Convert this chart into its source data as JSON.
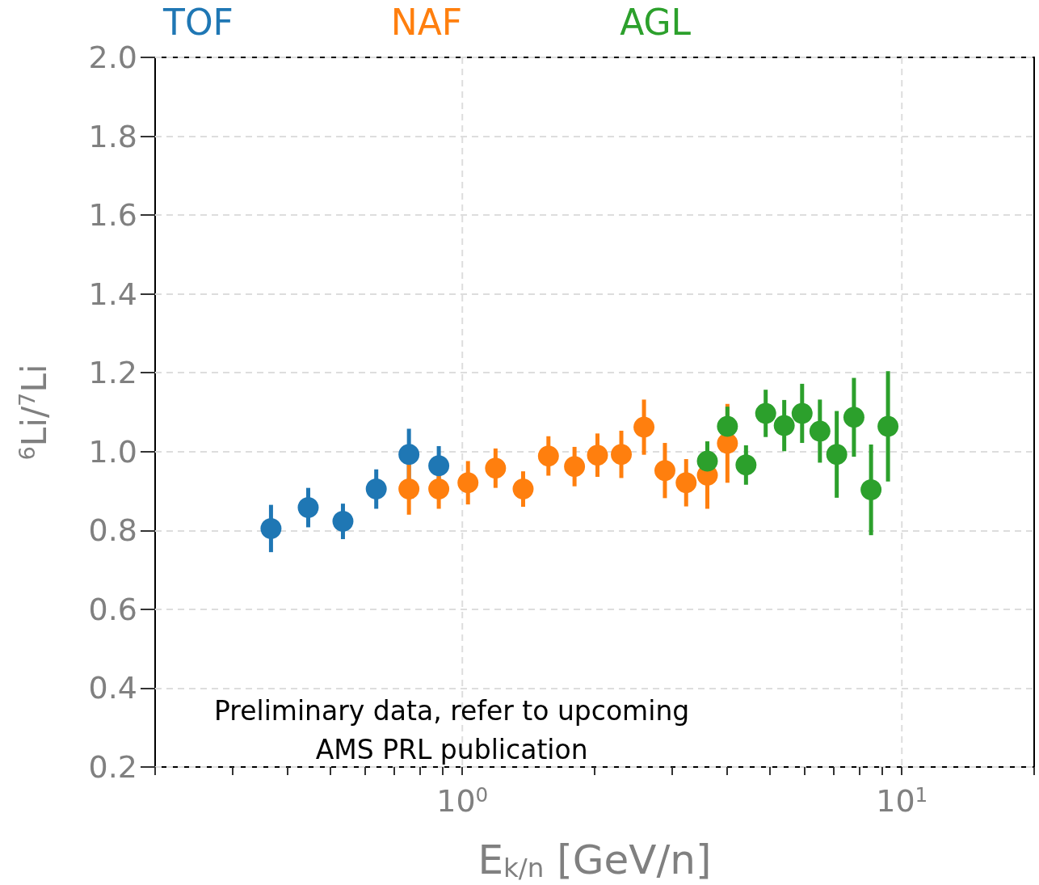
{
  "chart_data": {
    "type": "scatter",
    "xlabel": "E$_{k/n}$ [GeV/n]",
    "ylabel": "$^{6}$Li/$^{7}$Li",
    "log": "x",
    "xlim": [
      0.2,
      20
    ],
    "xticks": [
      {
        "value": 0.2,
        "label": null
      },
      {
        "value": 0.3,
        "label": null
      },
      {
        "value": 0.4,
        "label": null
      },
      {
        "value": 0.5,
        "label": null
      },
      {
        "value": 0.6,
        "label": null
      },
      {
        "value": 0.7,
        "label": null
      },
      {
        "value": 0.8,
        "label": null
      },
      {
        "value": 0.9,
        "label": null
      },
      {
        "value": 1,
        "label": "10$^{0}$"
      },
      {
        "value": 2,
        "label": null
      },
      {
        "value": 3,
        "label": null
      },
      {
        "value": 4,
        "label": null
      },
      {
        "value": 5,
        "label": null
      },
      {
        "value": 6,
        "label": null
      },
      {
        "value": 7,
        "label": null
      },
      {
        "value": 8,
        "label": null
      },
      {
        "value": 9,
        "label": null
      },
      {
        "value": 10,
        "label": "10$^{1}$"
      },
      {
        "value": 20,
        "label": null
      }
    ],
    "ylim": [
      0.2,
      2.0
    ],
    "yticks": [
      {
        "value": 0.2,
        "label": "0.2"
      },
      {
        "value": 0.4,
        "label": "0.4"
      },
      {
        "value": 0.6,
        "label": "0.6"
      },
      {
        "value": 0.8,
        "label": "0.8"
      },
      {
        "value": 1.0,
        "label": "1.0"
      },
      {
        "value": 1.2,
        "label": "1.2"
      },
      {
        "value": 1.4,
        "label": "1.4"
      },
      {
        "value": 1.6,
        "label": "1.6"
      },
      {
        "value": 1.8,
        "label": "1.8"
      },
      {
        "value": 2.0,
        "label": "2.0"
      }
    ],
    "grid": true,
    "legend": "top",
    "marker": "circle",
    "series": [
      {
        "name": "TOF",
        "color": "#1f77b4",
        "x": [
          0.367,
          0.446,
          0.535,
          0.637,
          0.756,
          0.884
        ],
        "values": [
          0.805,
          0.858,
          0.823,
          0.905,
          0.993,
          0.964
        ],
        "errors": [
          0.06,
          0.05,
          0.045,
          0.05,
          0.065,
          0.05
        ]
      },
      {
        "name": "NAF",
        "color": "#ff7f0e",
        "x": [
          0.756,
          0.884,
          1.03,
          1.19,
          1.375,
          1.57,
          1.8,
          2.03,
          2.3,
          2.59,
          2.89,
          3.23,
          3.61,
          4.01
        ],
        "values": [
          0.905,
          0.905,
          0.921,
          0.958,
          0.905,
          0.989,
          0.962,
          0.991,
          0.993,
          1.062,
          0.952,
          0.921,
          0.94,
          1.021
        ],
        "errors": [
          0.065,
          0.05,
          0.055,
          0.05,
          0.045,
          0.05,
          0.05,
          0.055,
          0.06,
          0.07,
          0.07,
          0.06,
          0.085,
          0.1
        ]
      },
      {
        "name": "AGL",
        "color": "#2ca02c",
        "x": [
          3.61,
          4.01,
          4.42,
          4.9,
          5.4,
          5.93,
          6.51,
          7.11,
          7.78,
          8.51,
          9.3
        ],
        "values": [
          0.976,
          1.064,
          0.966,
          1.097,
          1.066,
          1.097,
          1.052,
          0.993,
          1.087,
          0.903,
          1.064
        ],
        "errors": [
          0.05,
          0.05,
          0.05,
          0.06,
          0.065,
          0.075,
          0.08,
          0.11,
          0.1,
          0.115,
          0.14
        ]
      }
    ],
    "annotations": [
      "Preliminary data, refer to upcoming\nAMS PRL publication"
    ]
  }
}
